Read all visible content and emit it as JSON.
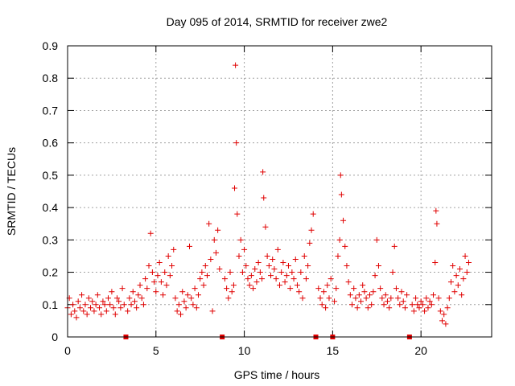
{
  "chart_data": {
    "type": "scatter",
    "title": "Day 095 of 2014, SRMTID for receiver zwe2",
    "xlabel": "GPS time / hours",
    "ylabel": "SRMTID / TECUs",
    "xlim": [
      0,
      24
    ],
    "ylim": [
      0,
      0.9
    ],
    "xticks": [
      0,
      5,
      10,
      15,
      20
    ],
    "xtick_labels": [
      "0",
      "5",
      "10",
      "15",
      "20"
    ],
    "yticks": [
      0,
      0.1,
      0.2,
      0.3,
      0.4,
      0.5,
      0.6,
      0.7,
      0.8,
      0.9
    ],
    "ytick_labels": [
      "0",
      "0.1",
      "0.2",
      "0.3",
      "0.4",
      "0.5",
      "0.6",
      "0.7",
      "0.8",
      "0.9"
    ],
    "grid": true,
    "marker": "plus",
    "color": "#e00000",
    "series": [
      {
        "name": "SRMTID",
        "x": [
          0.0,
          0.1,
          0.2,
          0.3,
          0.4,
          0.5,
          0.6,
          0.7,
          0.8,
          0.9,
          1.0,
          1.1,
          1.2,
          1.3,
          1.4,
          1.5,
          1.6,
          1.7,
          1.8,
          1.9,
          2.0,
          2.1,
          2.2,
          2.3,
          2.4,
          2.5,
          2.6,
          2.7,
          2.8,
          2.9,
          3.0,
          3.1,
          3.2,
          3.4,
          3.5,
          3.6,
          3.7,
          3.8,
          3.9,
          4.0,
          4.1,
          4.2,
          4.3,
          4.4,
          4.5,
          4.6,
          4.7,
          4.8,
          4.9,
          5.0,
          5.1,
          5.2,
          5.3,
          5.4,
          5.5,
          5.6,
          5.7,
          5.8,
          5.9,
          6.0,
          6.1,
          6.2,
          6.3,
          6.4,
          6.5,
          6.6,
          6.7,
          6.8,
          6.9,
          7.0,
          7.1,
          7.2,
          7.3,
          7.4,
          7.5,
          7.6,
          7.7,
          7.8,
          7.9,
          8.0,
          8.1,
          8.2,
          8.3,
          8.4,
          8.5,
          8.6,
          8.9,
          9.0,
          9.1,
          9.2,
          9.3,
          9.4,
          9.45,
          9.5,
          9.55,
          9.6,
          9.7,
          9.8,
          9.9,
          10.0,
          10.1,
          10.2,
          10.3,
          10.4,
          10.5,
          10.6,
          10.7,
          10.8,
          10.9,
          11.0,
          11.05,
          11.1,
          11.2,
          11.3,
          11.4,
          11.5,
          11.6,
          11.7,
          11.8,
          11.9,
          12.0,
          12.1,
          12.2,
          12.3,
          12.4,
          12.5,
          12.6,
          12.7,
          12.8,
          12.9,
          13.0,
          13.1,
          13.2,
          13.3,
          13.4,
          13.5,
          13.6,
          13.7,
          13.8,
          13.9,
          14.2,
          14.3,
          14.4,
          14.5,
          14.6,
          14.7,
          14.8,
          14.9,
          15.1,
          15.2,
          15.3,
          15.4,
          15.45,
          15.5,
          15.6,
          15.7,
          15.8,
          15.9,
          16.0,
          16.1,
          16.2,
          16.3,
          16.4,
          16.5,
          16.6,
          16.7,
          16.8,
          16.9,
          17.0,
          17.1,
          17.2,
          17.3,
          17.4,
          17.5,
          17.6,
          17.7,
          17.8,
          17.9,
          18.0,
          18.1,
          18.2,
          18.3,
          18.4,
          18.5,
          18.6,
          18.7,
          18.8,
          18.9,
          19.0,
          19.1,
          19.2,
          19.5,
          19.6,
          19.7,
          19.8,
          19.9,
          20.0,
          20.1,
          20.2,
          20.3,
          20.4,
          20.5,
          20.6,
          20.7,
          20.8,
          20.85,
          20.9,
          21.0,
          21.1,
          21.2,
          21.3,
          21.4,
          21.5,
          21.6,
          21.7,
          21.8,
          21.9,
          22.0,
          22.1,
          22.2,
          22.3,
          22.4,
          22.5,
          22.6,
          22.7
        ],
        "y": [
          0.09,
          0.12,
          0.07,
          0.1,
          0.08,
          0.06,
          0.11,
          0.09,
          0.13,
          0.08,
          0.1,
          0.07,
          0.12,
          0.09,
          0.11,
          0.08,
          0.1,
          0.13,
          0.09,
          0.07,
          0.11,
          0.1,
          0.08,
          0.12,
          0.1,
          0.14,
          0.09,
          0.07,
          0.12,
          0.11,
          0.09,
          0.15,
          0.1,
          0.08,
          0.12,
          0.1,
          0.14,
          0.11,
          0.09,
          0.13,
          0.16,
          0.12,
          0.1,
          0.18,
          0.15,
          0.22,
          0.32,
          0.2,
          0.17,
          0.14,
          0.19,
          0.23,
          0.17,
          0.13,
          0.2,
          0.16,
          0.25,
          0.19,
          0.22,
          0.27,
          0.12,
          0.08,
          0.1,
          0.07,
          0.14,
          0.11,
          0.09,
          0.13,
          0.28,
          0.12,
          0.1,
          0.15,
          0.09,
          0.13,
          0.18,
          0.2,
          0.16,
          0.22,
          0.19,
          0.35,
          0.24,
          0.08,
          0.3,
          0.26,
          0.33,
          0.21,
          0.18,
          0.15,
          0.12,
          0.2,
          0.14,
          0.16,
          0.46,
          0.84,
          0.6,
          0.38,
          0.25,
          0.3,
          0.2,
          0.27,
          0.22,
          0.18,
          0.16,
          0.19,
          0.15,
          0.21,
          0.17,
          0.23,
          0.2,
          0.18,
          0.51,
          0.43,
          0.34,
          0.25,
          0.22,
          0.19,
          0.24,
          0.21,
          0.18,
          0.27,
          0.16,
          0.2,
          0.23,
          0.17,
          0.19,
          0.22,
          0.15,
          0.2,
          0.18,
          0.24,
          0.16,
          0.14,
          0.2,
          0.12,
          0.25,
          0.18,
          0.22,
          0.29,
          0.33,
          0.38,
          0.15,
          0.12,
          0.1,
          0.14,
          0.09,
          0.16,
          0.12,
          0.18,
          0.11,
          0.15,
          0.25,
          0.3,
          0.5,
          0.44,
          0.36,
          0.28,
          0.22,
          0.17,
          0.13,
          0.1,
          0.15,
          0.12,
          0.09,
          0.13,
          0.11,
          0.16,
          0.14,
          0.12,
          0.09,
          0.13,
          0.1,
          0.14,
          0.19,
          0.3,
          0.22,
          0.15,
          0.12,
          0.1,
          0.13,
          0.11,
          0.09,
          0.12,
          0.2,
          0.28,
          0.15,
          0.12,
          0.1,
          0.14,
          0.11,
          0.09,
          0.13,
          0.1,
          0.08,
          0.12,
          0.1,
          0.09,
          0.11,
          0.1,
          0.08,
          0.12,
          0.09,
          0.11,
          0.1,
          0.13,
          0.23,
          0.39,
          0.35,
          0.12,
          0.08,
          0.05,
          0.07,
          0.04,
          0.09,
          0.12,
          0.17,
          0.22,
          0.14,
          0.19,
          0.16,
          0.21,
          0.13,
          0.18,
          0.25,
          0.2,
          0.23
        ]
      }
    ],
    "data_gaps_x": [
      3.3,
      8.75,
      14.05,
      15.0,
      19.35
    ]
  }
}
